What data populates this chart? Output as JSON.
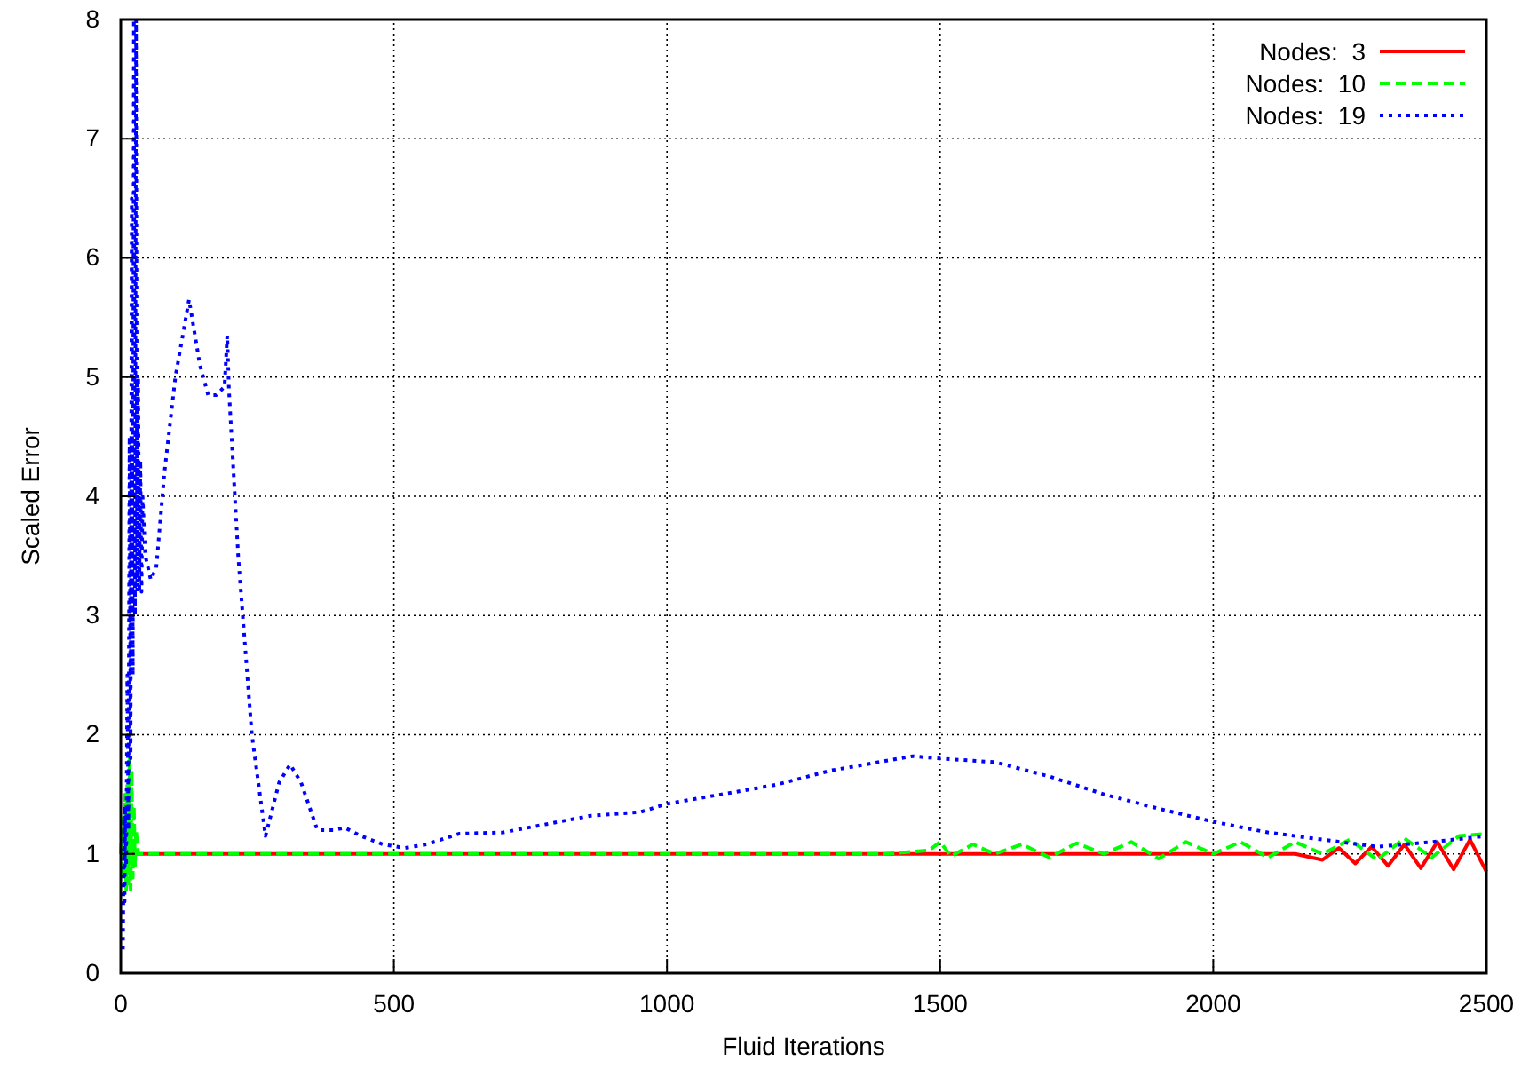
{
  "chart_data": {
    "type": "line",
    "xlabel": "Fluid Iterations",
    "ylabel": "Scaled Error",
    "xlim": [
      0,
      2500
    ],
    "ylim": [
      0,
      8
    ],
    "xticks": [
      0,
      500,
      1000,
      1500,
      2000,
      2500
    ],
    "yticks": [
      0,
      1,
      2,
      3,
      4,
      5,
      6,
      7,
      8
    ],
    "grid": true,
    "legend": "top right",
    "marker": "none",
    "series": [
      {
        "name": "Nodes:  3",
        "color": "#ff0000",
        "line_style": "solid",
        "x": [
          0,
          40,
          500,
          1000,
          1500,
          1800,
          2000,
          2150,
          2200,
          2230,
          2260,
          2290,
          2320,
          2350,
          2380,
          2410,
          2440,
          2470,
          2500
        ],
        "values": [
          1.0,
          1.0,
          1.0,
          1.0,
          1.0,
          1.0,
          1.0,
          1.0,
          0.95,
          1.05,
          0.92,
          1.06,
          0.9,
          1.08,
          0.88,
          1.1,
          0.87,
          1.12,
          0.85
        ]
      },
      {
        "name": "Nodes:  10",
        "color": "#00ff00",
        "line_style": "dashed",
        "x": [
          0,
          3,
          5,
          8,
          10,
          12,
          14,
          16,
          18,
          20,
          22,
          24,
          26,
          28,
          32,
          40,
          200,
          500,
          1000,
          1400,
          1480,
          1500,
          1520,
          1560,
          1600,
          1650,
          1700,
          1750,
          1800,
          1850,
          1900,
          1950,
          2000,
          2050,
          2100,
          2150,
          2200,
          2250,
          2300,
          2350,
          2400,
          2450,
          2500
        ],
        "values": [
          1.0,
          1.3,
          0.8,
          1.5,
          0.7,
          1.6,
          0.75,
          1.8,
          0.7,
          1.7,
          0.8,
          1.4,
          0.9,
          1.2,
          1.0,
          1.0,
          1.0,
          1.0,
          1.0,
          1.0,
          1.03,
          1.1,
          0.98,
          1.08,
          1.0,
          1.08,
          0.97,
          1.09,
          1.0,
          1.1,
          0.96,
          1.1,
          1.0,
          1.1,
          0.97,
          1.1,
          1.0,
          1.12,
          0.95,
          1.13,
          0.97,
          1.15,
          1.17
        ]
      },
      {
        "name": "Nodes:  19",
        "color": "#0000ff",
        "line_style": "dotted",
        "x": [
          4,
          6,
          7,
          8,
          10,
          12,
          14,
          16,
          18,
          20,
          22,
          24,
          26,
          28,
          30,
          32,
          34,
          36,
          38,
          40,
          45,
          55,
          65,
          80,
          100,
          125,
          145,
          160,
          175,
          190,
          195,
          198,
          215,
          240,
          265,
          290,
          310,
          330,
          360,
          390,
          410,
          440,
          480,
          520,
          560,
          620,
          700,
          780,
          860,
          950,
          1000,
          1100,
          1200,
          1300,
          1400,
          1450,
          1500,
          1600,
          1700,
          1800,
          1900,
          2000,
          2100,
          2200,
          2300,
          2400,
          2500
        ],
        "values": [
          0.2,
          1.3,
          0.6,
          1.4,
          0.9,
          2.5,
          1.2,
          4.5,
          1.8,
          6.5,
          2.5,
          8.0,
          3.0,
          8.0,
          3.2,
          5.0,
          3.2,
          4.3,
          3.2,
          4.0,
          3.5,
          3.3,
          3.4,
          4.2,
          5.0,
          5.65,
          5.1,
          4.85,
          4.85,
          4.92,
          5.35,
          4.9,
          3.5,
          2.0,
          1.15,
          1.6,
          1.75,
          1.6,
          1.2,
          1.2,
          1.22,
          1.15,
          1.08,
          1.05,
          1.08,
          1.17,
          1.18,
          1.25,
          1.32,
          1.35,
          1.42,
          1.5,
          1.58,
          1.7,
          1.78,
          1.82,
          1.8,
          1.77,
          1.65,
          1.5,
          1.38,
          1.27,
          1.18,
          1.12,
          1.06,
          1.1,
          1.15
        ]
      }
    ]
  }
}
